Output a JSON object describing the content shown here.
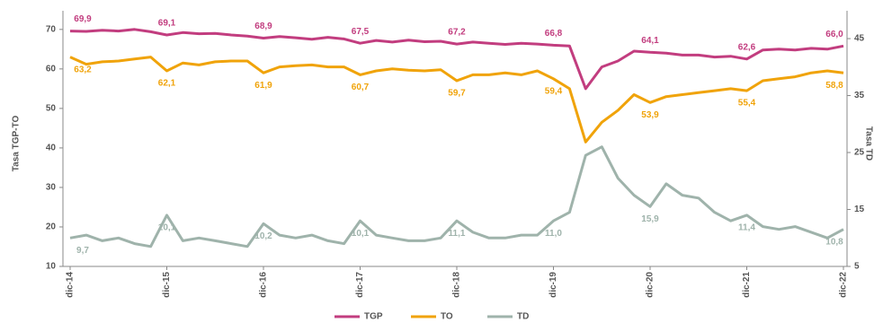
{
  "chart_data": {
    "type": "line",
    "y_label": "Tasa TGP-TO",
    "y2_label": "Tasa TD",
    "categories": [
      "dic-14",
      null,
      null,
      null,
      null,
      null,
      "dic-15",
      null,
      null,
      null,
      null,
      null,
      "dic-16",
      null,
      null,
      null,
      null,
      null,
      "dic-17",
      null,
      null,
      null,
      null,
      null,
      "dic-18",
      null,
      null,
      null,
      null,
      null,
      "dic-19",
      null,
      null,
      null,
      null,
      null,
      "dic-20",
      null,
      null,
      null,
      null,
      null,
      "dic-21",
      null,
      null,
      null,
      null,
      null,
      "dic-22"
    ],
    "ylim": [
      10,
      72
    ],
    "yticks": [
      10,
      20,
      30,
      40,
      50,
      60,
      70
    ],
    "y2lim": [
      5,
      48
    ],
    "y2ticks": [
      5,
      15,
      25,
      35,
      45
    ],
    "series": [
      {
        "name": "TGP",
        "color": "#c23d7f",
        "labels": [
          "69,9",
          "69,1",
          "68,9",
          "67,5",
          "67,2",
          "66,8",
          "64,1",
          "62,6",
          "66,0"
        ],
        "values": [
          69.6,
          69.5,
          69.8,
          69.6,
          70.0,
          69.4,
          68.6,
          69.2,
          68.9,
          69.0,
          68.6,
          68.3,
          67.8,
          68.2,
          67.9,
          67.5,
          68.0,
          67.6,
          66.5,
          67.2,
          66.8,
          67.3,
          66.9,
          67.0,
          66.3,
          66.8,
          66.5,
          66.2,
          66.5,
          66.3,
          66.0,
          65.8,
          55.0,
          60.5,
          62.0,
          64.5,
          64.2,
          64.0,
          63.5,
          63.5,
          63.0,
          63.2,
          62.5,
          64.8,
          65.0,
          64.8,
          65.2,
          65.0,
          65.8
        ]
      },
      {
        "name": "TO",
        "color": "#f0a30a",
        "labels": [
          "63,2",
          "62,1",
          "61,9",
          "60,7",
          "59,7",
          "59,4",
          "53,9",
          "55,4",
          "58,8"
        ],
        "values": [
          63.0,
          61.2,
          61.8,
          62.0,
          62.5,
          63.0,
          59.5,
          61.5,
          61.0,
          61.8,
          62.0,
          62.0,
          59.0,
          60.5,
          60.8,
          61.0,
          60.5,
          60.5,
          58.5,
          59.5,
          60.0,
          59.7,
          59.5,
          59.8,
          57.0,
          58.5,
          58.5,
          59.0,
          58.5,
          59.5,
          57.5,
          55.0,
          41.5,
          46.5,
          49.5,
          53.5,
          51.5,
          53.0,
          53.5,
          54.0,
          54.5,
          55.0,
          54.5,
          57.0,
          57.5,
          58.0,
          59.0,
          59.5,
          59.0
        ]
      },
      {
        "name": "TD",
        "color": "#9fb3ab",
        "axis": "y2",
        "labels": [
          "9,7",
          "10,1",
          "10,2",
          "10,1",
          "11,1",
          "11,0",
          "15,9",
          "11,4",
          "10,8"
        ],
        "values": [
          10.0,
          10.5,
          9.5,
          10.0,
          9.0,
          8.5,
          14.0,
          9.5,
          10.0,
          9.5,
          9.0,
          8.5,
          12.5,
          10.5,
          10.0,
          10.5,
          9.5,
          9.0,
          13.0,
          10.5,
          10.0,
          9.5,
          9.5,
          10.0,
          13.0,
          11.0,
          10.0,
          10.0,
          10.5,
          10.5,
          13.0,
          14.5,
          24.5,
          26.0,
          20.5,
          17.5,
          15.5,
          19.5,
          17.5,
          17.0,
          14.5,
          13.0,
          14.0,
          12.0,
          11.5,
          12.0,
          11.0,
          10.0,
          11.5
        ]
      }
    ]
  }
}
